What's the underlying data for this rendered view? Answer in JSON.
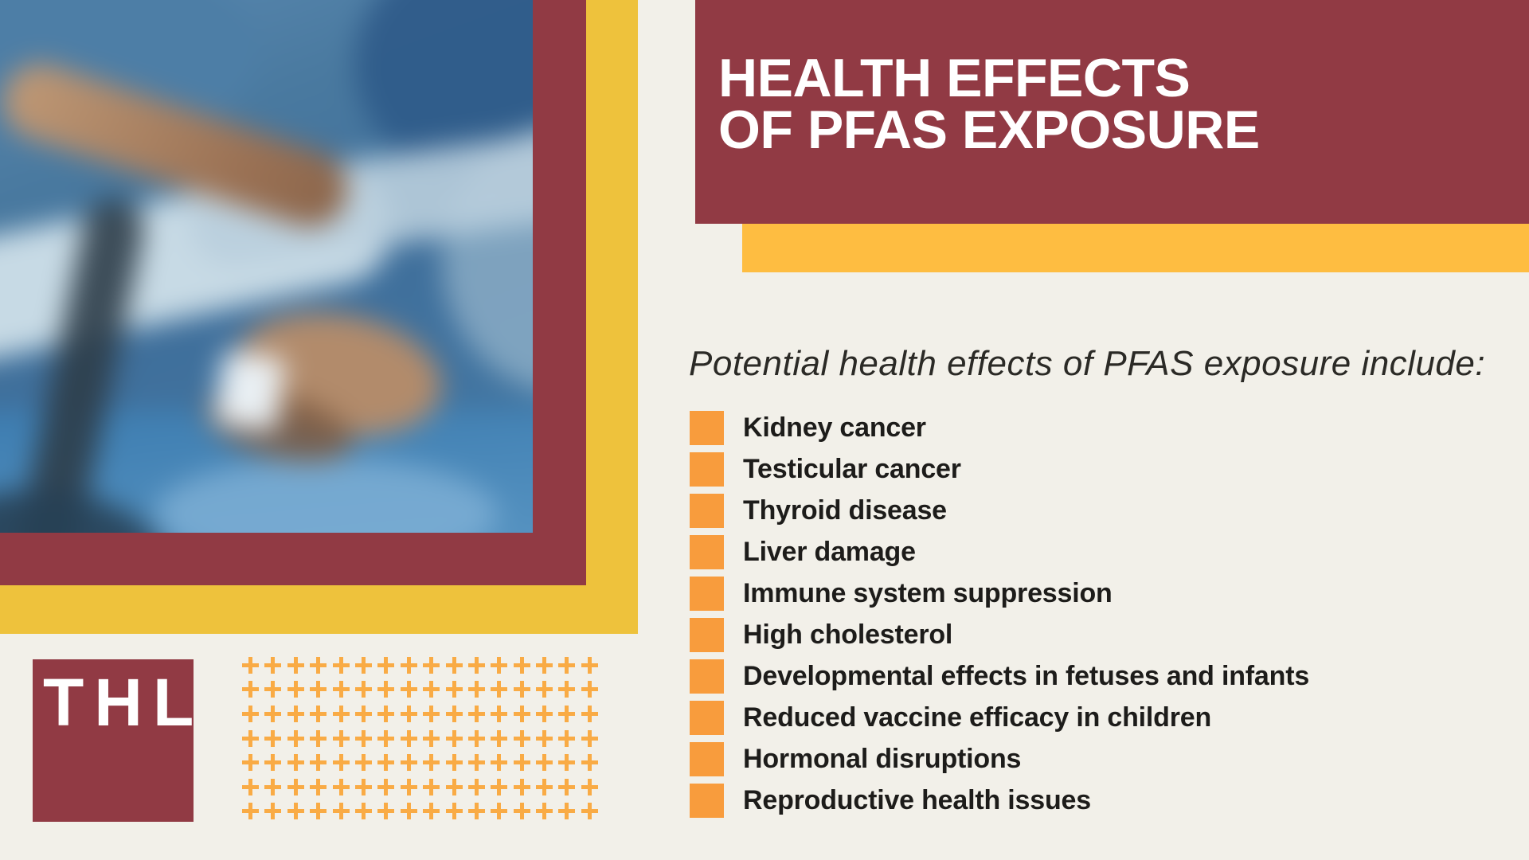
{
  "title": {
    "line1": "HEALTH EFFECTS",
    "line2": "OF PFAS EXPOSURE"
  },
  "intro": {
    "text": "Potential health effects of PFAS exposure include:"
  },
  "list": {
    "items": [
      "Kidney cancer",
      "Testicular cancer",
      "Thyroid disease",
      "Liver damage",
      "Immune system suppression",
      "High cholesterol",
      "Developmental effects in fetuses and infants",
      "Reduced vaccine efficacy in children",
      "Hormonal disruptions",
      "Reproductive health issues"
    ]
  },
  "logo": {
    "text": "THL"
  },
  "decor": {
    "plus_rows": 7,
    "plus_cols": 16
  },
  "colors": {
    "maroon": "#913A44",
    "frameYellow": "#EEC23C",
    "barYellow": "#FEBD41",
    "bullet": "#F89C3D",
    "plus": "#F9AB45",
    "cream": "#F2F0E9"
  }
}
